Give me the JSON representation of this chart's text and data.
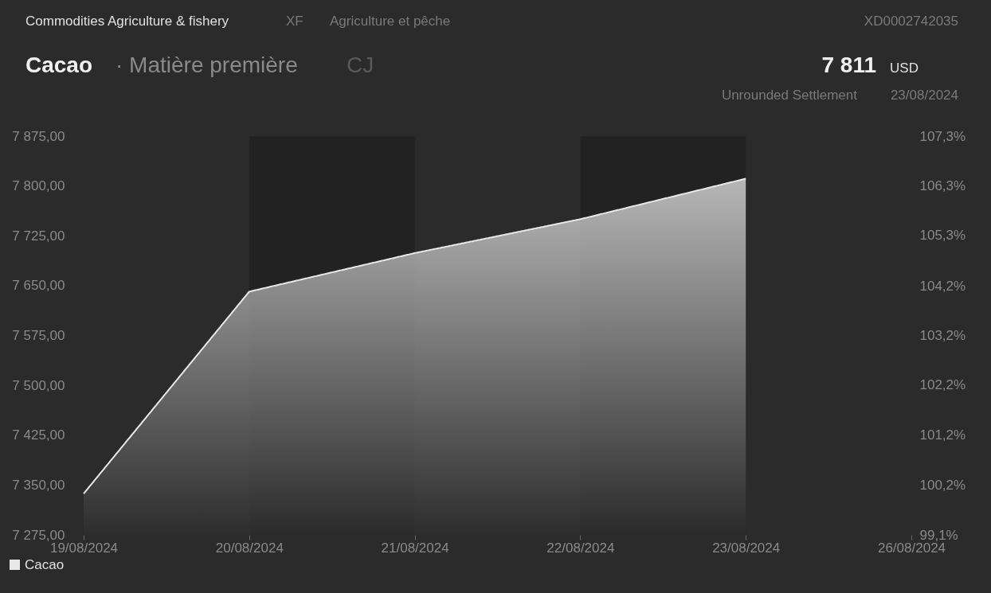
{
  "chart_data": {
    "type": "area",
    "title": "Cacao",
    "subtitle": "· Matière première",
    "annotations": [
      "Commodities Agriculture & fishery",
      "XF",
      "Agriculture et pêche",
      "XD0002742035",
      "CJ",
      "7 811",
      "USD",
      "Unrounded Settlement",
      "23/08/2024"
    ],
    "categories": [
      "19/08/2024",
      "20/08/2024",
      "21/08/2024",
      "22/08/2024",
      "23/08/2024",
      "26/08/2024"
    ],
    "series": [
      {
        "name": "Cacao",
        "color": "#e8e8e8",
        "values": [
          7337,
          7641,
          7699,
          7750,
          7811,
          null
        ]
      }
    ],
    "ylim": [
      7275,
      7875
    ],
    "yticks": [
      {
        "value": 7275,
        "label": "7 275,00"
      },
      {
        "value": 7350,
        "label": "7 350,00"
      },
      {
        "value": 7425,
        "label": "7 425,00"
      },
      {
        "value": 7500,
        "label": "7 500,00"
      },
      {
        "value": 7575,
        "label": "7 575,00"
      },
      {
        "value": 7650,
        "label": "7 650,00"
      },
      {
        "value": 7725,
        "label": "7 725,00"
      },
      {
        "value": 7800,
        "label": "7 800,00"
      },
      {
        "value": 7875,
        "label": "7 875,00"
      }
    ],
    "y2lim": [
      99.13,
      107.31
    ],
    "y2ticks": [
      {
        "value": 99.13,
        "label": "99,1%"
      },
      {
        "value": 100.15,
        "label": "100,2%"
      },
      {
        "value": 101.18,
        "label": "101,2%"
      },
      {
        "value": 102.2,
        "label": "102,2%"
      },
      {
        "value": 103.22,
        "label": "103,2%"
      },
      {
        "value": 104.24,
        "label": "104,2%"
      },
      {
        "value": 105.27,
        "label": "105,3%"
      },
      {
        "value": 106.29,
        "label": "106,3%"
      },
      {
        "value": 107.31,
        "label": "107,3%"
      }
    ],
    "bands": [
      {
        "axis": "x",
        "from": "20/08/2024",
        "to": "21/08/2024",
        "color": "#222222"
      },
      {
        "axis": "x",
        "from": "22/08/2024",
        "to": "23/08/2024",
        "color": "#222222"
      }
    ],
    "grid": false,
    "legend": "bottom left"
  }
}
